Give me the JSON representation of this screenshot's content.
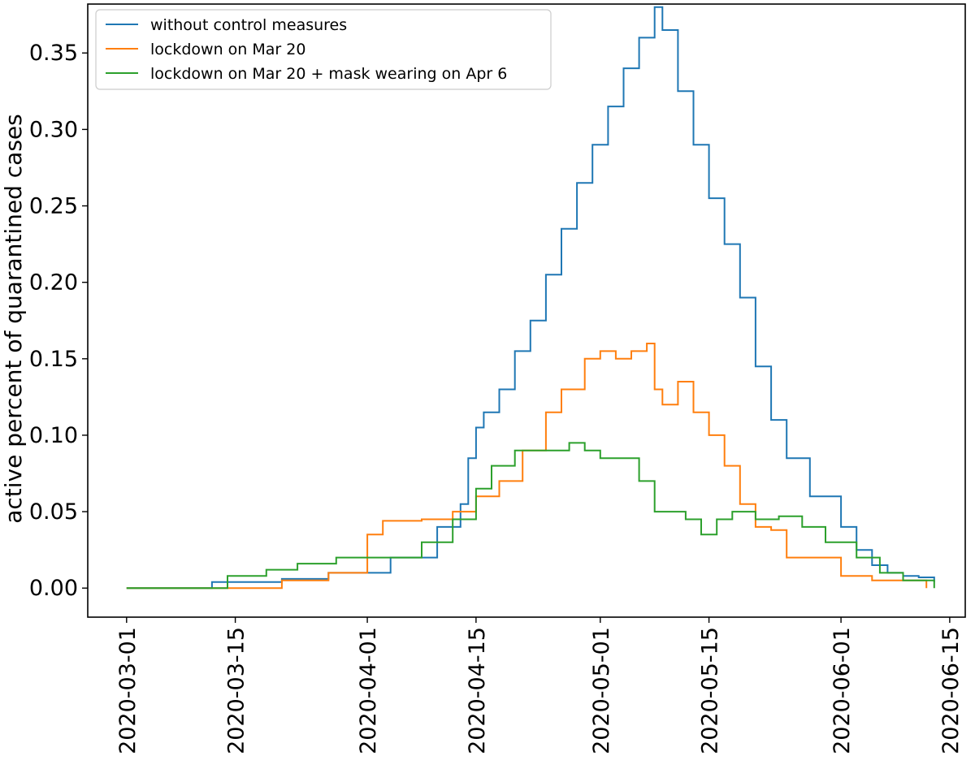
{
  "chart_data": {
    "type": "line",
    "title": "",
    "xlabel": "",
    "ylabel": "active percent of quarantined cases",
    "xlim": [
      "2020-02-25",
      "2020-06-17"
    ],
    "ylim": [
      -0.019,
      0.382
    ],
    "xticks": [
      "2020-03-01",
      "2020-03-15",
      "2020-04-01",
      "2020-04-15",
      "2020-05-01",
      "2020-05-15",
      "2020-06-01",
      "2020-06-15"
    ],
    "yticks": [
      "0.00",
      "0.05",
      "0.10",
      "0.15",
      "0.20",
      "0.25",
      "0.30",
      "0.35"
    ],
    "grid": false,
    "legend_position": "top-left",
    "series": [
      {
        "name": "without control measures",
        "color": "#1f77b4",
        "x": [
          "2020-03-01",
          "2020-03-11",
          "2020-03-12",
          "2020-03-14",
          "2020-03-21",
          "2020-03-27",
          "2020-04-04",
          "2020-04-10",
          "2020-04-13",
          "2020-04-14",
          "2020-04-15",
          "2020-04-16",
          "2020-04-18",
          "2020-04-20",
          "2020-04-22",
          "2020-04-24",
          "2020-04-26",
          "2020-04-28",
          "2020-04-30",
          "2020-05-02",
          "2020-05-04",
          "2020-05-06",
          "2020-05-08",
          "2020-05-09",
          "2020-05-11",
          "2020-05-13",
          "2020-05-15",
          "2020-05-17",
          "2020-05-19",
          "2020-05-21",
          "2020-05-23",
          "2020-05-25",
          "2020-05-28",
          "2020-06-01",
          "2020-06-03",
          "2020-06-05",
          "2020-06-07",
          "2020-06-09",
          "2020-06-11",
          "2020-06-13"
        ],
        "values": [
          0.0,
          0.0,
          0.004,
          0.004,
          0.006,
          0.01,
          0.02,
          0.04,
          0.055,
          0.085,
          0.105,
          0.115,
          0.13,
          0.155,
          0.175,
          0.205,
          0.235,
          0.265,
          0.29,
          0.315,
          0.34,
          0.36,
          0.38,
          0.365,
          0.325,
          0.29,
          0.255,
          0.225,
          0.19,
          0.145,
          0.11,
          0.085,
          0.06,
          0.04,
          0.025,
          0.015,
          0.01,
          0.008,
          0.007,
          0.004
        ]
      },
      {
        "name": "lockdown on Mar 20",
        "color": "#ff7f0e",
        "x": [
          "2020-03-01",
          "2020-03-15",
          "2020-03-21",
          "2020-03-27",
          "2020-04-01",
          "2020-04-03",
          "2020-04-08",
          "2020-04-12",
          "2020-04-15",
          "2020-04-18",
          "2020-04-21",
          "2020-04-24",
          "2020-04-26",
          "2020-04-29",
          "2020-05-01",
          "2020-05-03",
          "2020-05-05",
          "2020-05-07",
          "2020-05-08",
          "2020-05-09",
          "2020-05-11",
          "2020-05-13",
          "2020-05-15",
          "2020-05-17",
          "2020-05-19",
          "2020-05-21",
          "2020-05-23",
          "2020-05-25",
          "2020-06-01",
          "2020-06-05",
          "2020-06-12"
        ],
        "values": [
          0.0,
          0.0,
          0.005,
          0.01,
          0.035,
          0.044,
          0.045,
          0.05,
          0.06,
          0.07,
          0.09,
          0.115,
          0.13,
          0.15,
          0.155,
          0.15,
          0.155,
          0.16,
          0.13,
          0.12,
          0.135,
          0.115,
          0.1,
          0.08,
          0.055,
          0.04,
          0.038,
          0.02,
          0.008,
          0.005,
          0.0
        ]
      },
      {
        "name": "lockdown on Mar 20 + mask wearing on Apr 6",
        "color": "#2ca02c",
        "x": [
          "2020-03-01",
          "2020-03-12",
          "2020-03-14",
          "2020-03-19",
          "2020-03-23",
          "2020-03-28",
          "2020-04-03",
          "2020-04-08",
          "2020-04-12",
          "2020-04-15",
          "2020-04-17",
          "2020-04-20",
          "2020-04-24",
          "2020-04-27",
          "2020-04-29",
          "2020-05-01",
          "2020-05-04",
          "2020-05-06",
          "2020-05-08",
          "2020-05-10",
          "2020-05-12",
          "2020-05-14",
          "2020-05-16",
          "2020-05-18",
          "2020-05-21",
          "2020-05-24",
          "2020-05-27",
          "2020-05-30",
          "2020-06-03",
          "2020-06-06",
          "2020-06-09",
          "2020-06-13"
        ],
        "values": [
          0.0,
          0.0,
          0.008,
          0.012,
          0.016,
          0.02,
          0.02,
          0.03,
          0.045,
          0.065,
          0.08,
          0.09,
          0.09,
          0.095,
          0.09,
          0.085,
          0.085,
          0.07,
          0.05,
          0.05,
          0.045,
          0.035,
          0.045,
          0.05,
          0.045,
          0.047,
          0.04,
          0.03,
          0.02,
          0.01,
          0.005,
          0.0
        ]
      }
    ]
  }
}
